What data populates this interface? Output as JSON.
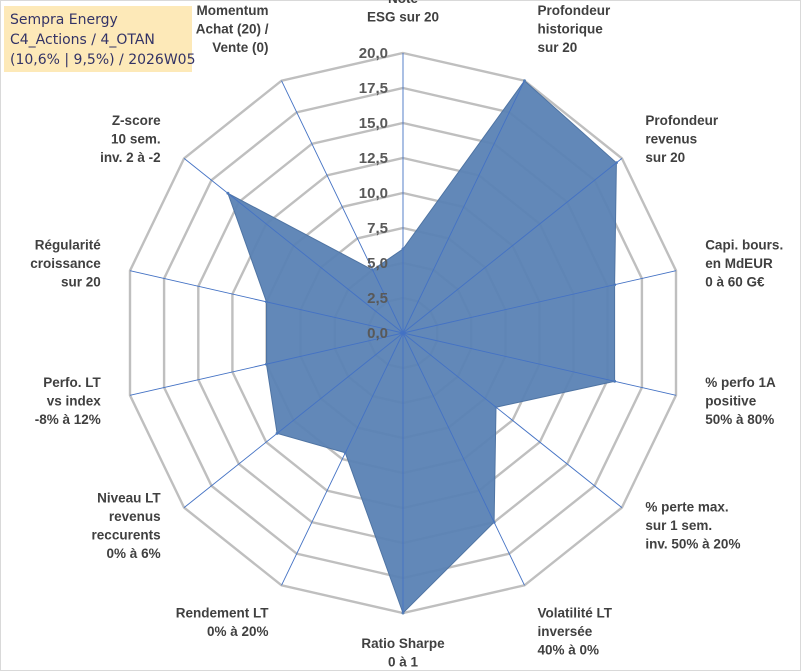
{
  "title": {
    "line1": "Sempra Energy",
    "line2": "C4_Actions / 4_OTAN",
    "line3": "(10,6% | 9,5%) / 2026W05"
  },
  "chart_data": {
    "type": "radar",
    "rmin": 0,
    "rmax": 20,
    "ticks": [
      "0,0",
      "2,5",
      "5,0",
      "7,5",
      "10,0",
      "12,5",
      "15,0",
      "17,5",
      "20,0"
    ],
    "fill_color": "#5a82b4",
    "grid_color": "#bfbfbf",
    "categories": [
      {
        "label": [
          "Note",
          "ESG sur 20"
        ],
        "value": 6.0
      },
      {
        "label": [
          "Profondeur",
          "historique",
          "sur 20"
        ],
        "value": 20.0
      },
      {
        "label": [
          "Profondeur",
          "revenus",
          "sur 20"
        ],
        "value": 19.5
      },
      {
        "label": [
          "Capi. bours.",
          "en MdEUR",
          "0 à 60 G€"
        ],
        "value": 15.5
      },
      {
        "label": [
          "% perfo 1A",
          "positive",
          "50% à 80%"
        ],
        "value": 15.5
      },
      {
        "label": [
          "% perte max.",
          "sur 1 sem.",
          "inv. 50% à 20%"
        ],
        "value": 8.5
      },
      {
        "label": [
          "Volatilité LT",
          "inversée",
          "40% à 0%"
        ],
        "value": 15.0
      },
      {
        "label": [
          "Ratio Sharpe",
          "0 à 1"
        ],
        "value": 20.0
      },
      {
        "label": [
          "Rendement LT",
          "0% à 20%"
        ],
        "value": 9.5
      },
      {
        "label": [
          "Niveau LT",
          "revenus",
          "reccurents",
          "0% à 6%"
        ],
        "value": 11.5
      },
      {
        "label": [
          "Perfo. LT",
          "vs index",
          "-8% à 12%"
        ],
        "value": 10.0
      },
      {
        "label": [
          "Régularité",
          "croissance",
          "sur 20"
        ],
        "value": 10.0
      },
      {
        "label": [
          "Z-score",
          "10 sem.",
          "inv. 2 à -2"
        ],
        "value": 16.0
      },
      {
        "label": [
          "Momentum",
          "Achat (20) /",
          "Vente (0)"
        ],
        "value": 5.0
      }
    ]
  }
}
